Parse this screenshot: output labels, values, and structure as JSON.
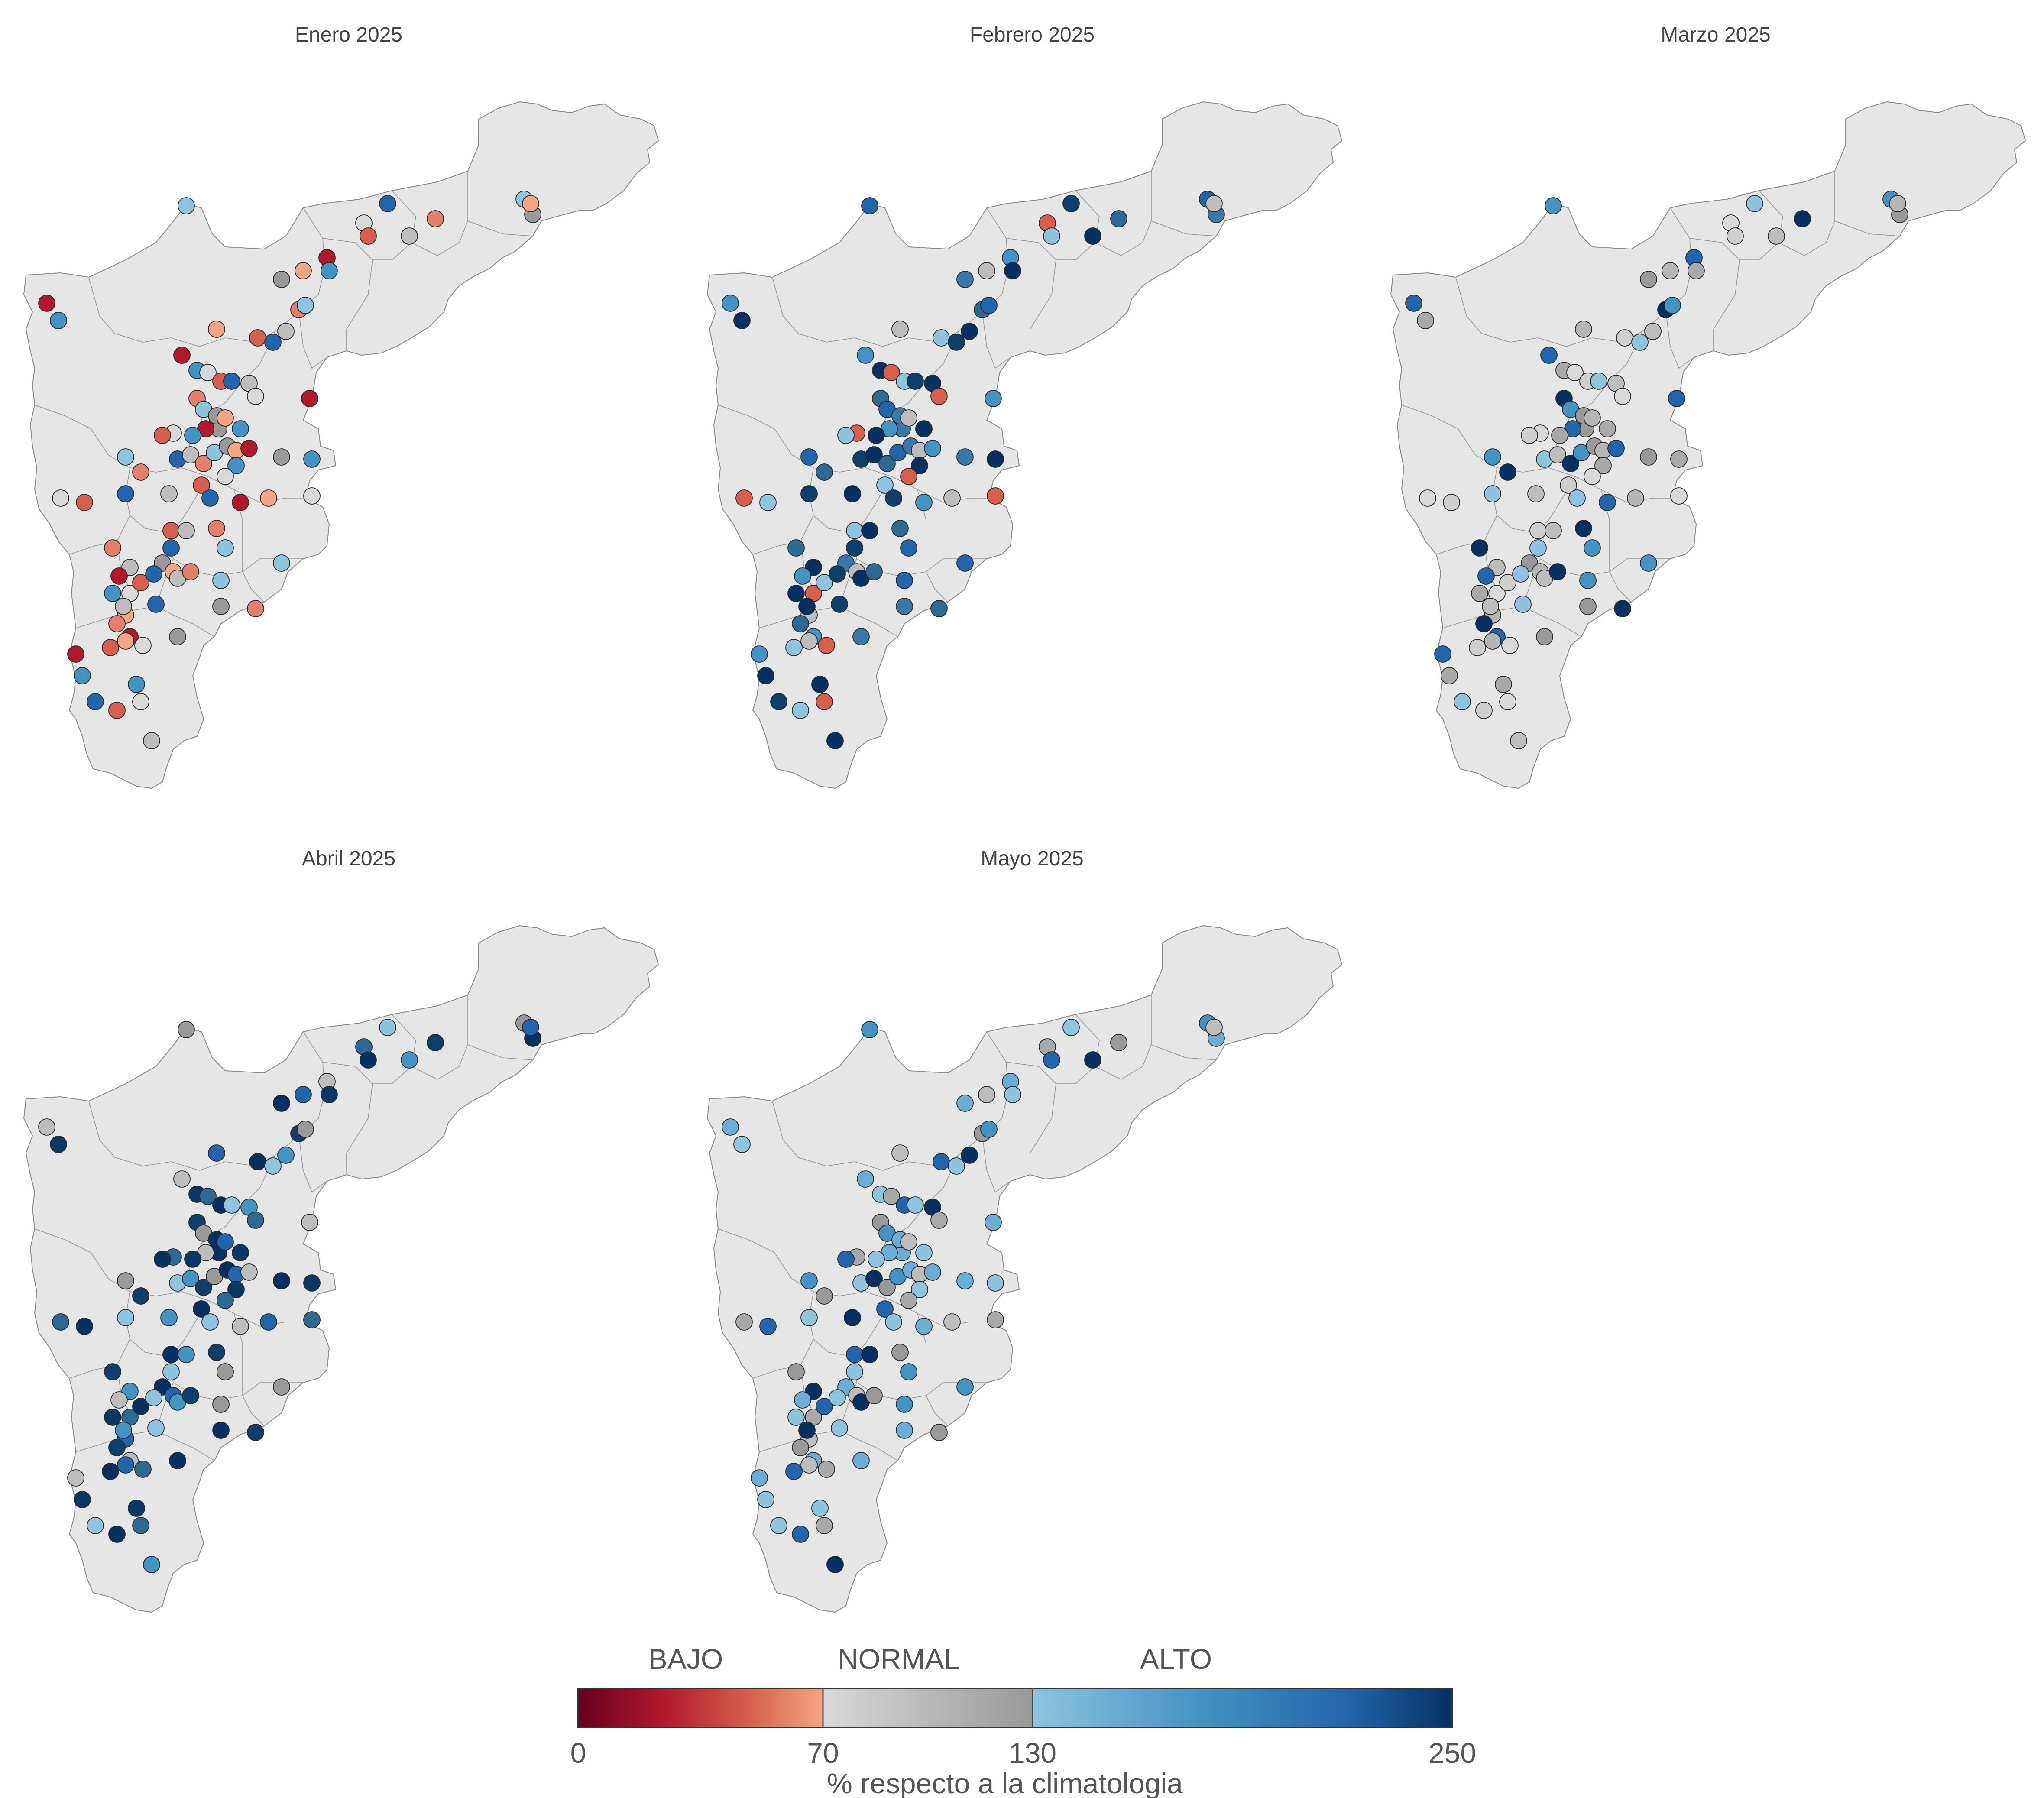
{
  "panels": [
    {
      "title": "Enero 2025"
    },
    {
      "title": "Febrero 2025"
    },
    {
      "title": "Marzo 2025"
    },
    {
      "title": "Abril 2025"
    },
    {
      "title": "Mayo 2025"
    }
  ],
  "legend": {
    "categories": [
      {
        "label": "BAJO",
        "range": [
          0,
          70
        ]
      },
      {
        "label": "NORMAL",
        "range": [
          70,
          130
        ]
      },
      {
        "label": "ALTO",
        "range": [
          130,
          250
        ]
      }
    ],
    "ticks": [
      {
        "label": "0",
        "value": 0
      },
      {
        "label": "70",
        "value": 70
      },
      {
        "label": "130",
        "value": 130
      },
      {
        "label": "250",
        "value": 250
      }
    ],
    "title": "% respecto a la climatologia",
    "domain": [
      0,
      250
    ],
    "colors": {
      "bajo": [
        "#67001f",
        "#b2182b",
        "#d6604d",
        "#f4a582"
      ],
      "normal": [
        "#d9d9d9",
        "#bdbdbd",
        "#999999"
      ],
      "alto": [
        "#8ec4de",
        "#4393c3",
        "#2166ac",
        "#053061"
      ]
    }
  },
  "map": {
    "region_fill": "#e6e6e6",
    "region_stroke": "#8c8c8c"
  }
}
